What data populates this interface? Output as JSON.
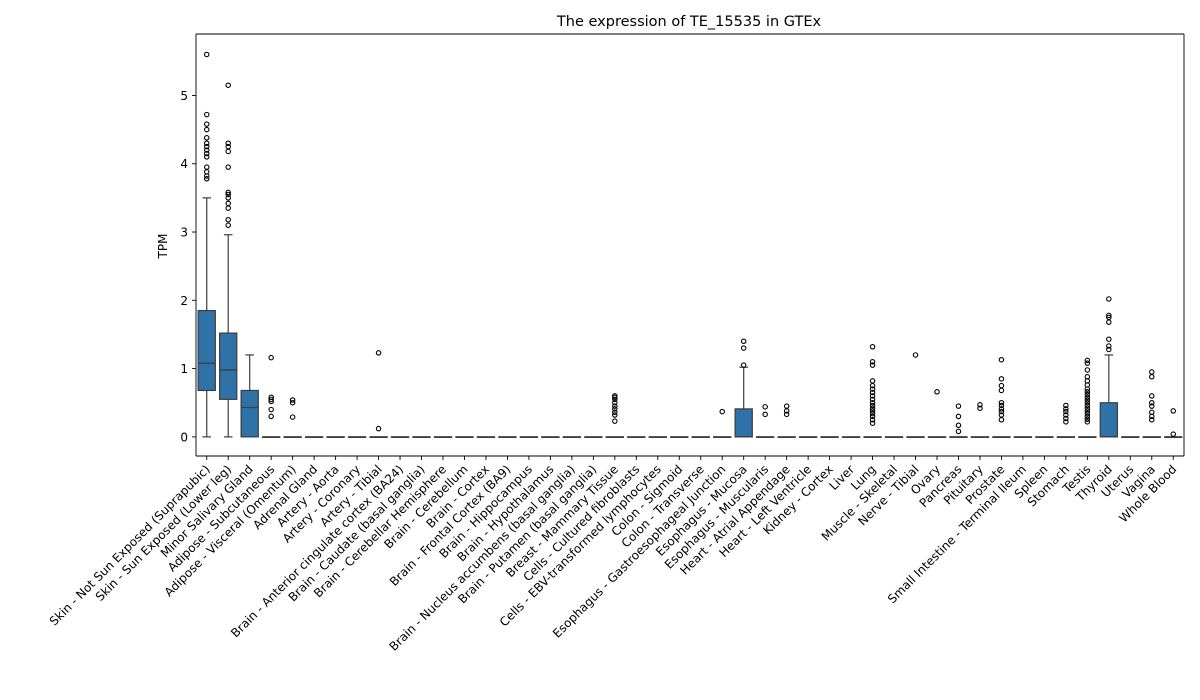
{
  "chart_data": {
    "type": "box",
    "title": "The expression of TE_15535 in GTEx",
    "xlabel": "",
    "ylabel": "TPM",
    "ylim": [
      -0.28,
      5.9
    ],
    "yticks": [
      0,
      1,
      2,
      3,
      4,
      5
    ],
    "grid": false,
    "box_color": "#2f72a8",
    "categories": [
      "Skin - Not Sun Exposed (Suprapubic)",
      "Skin - Sun Exposed (Lower leg)",
      "Minor Salivary Gland",
      "Adipose - Subcutaneous",
      "Adipose - Visceral (Omentum)",
      "Adrenal Gland",
      "Artery - Aorta",
      "Artery - Coronary",
      "Artery - Tibial",
      "Brain - Anterior cingulate cortex (BA24)",
      "Brain - Caudate (basal ganglia)",
      "Brain - Cerebellar Hemisphere",
      "Brain - Cerebellum",
      "Brain - Cortex",
      "Brain - Frontal Cortex (BA9)",
      "Brain - Hippocampus",
      "Brain - Hypothalamus",
      "Brain - Nucleus accumbens (basal ganglia)",
      "Brain - Putamen (basal ganglia)",
      "Breast - Mammary Tissue",
      "Cells - Cultured fibroblasts",
      "Cells - EBV-transformed lymphocytes",
      "Colon - Sigmoid",
      "Colon - Transverse",
      "Esophagus - Gastroesophageal Junction",
      "Esophagus - Mucosa",
      "Esophagus - Muscularis",
      "Heart - Atrial Appendage",
      "Heart - Left Ventricle",
      "Kidney - Cortex",
      "Liver",
      "Lung",
      "Muscle - Skeletal",
      "Nerve - Tibial",
      "Ovary",
      "Pancreas",
      "Pituitary",
      "Prostate",
      "Small Intestine - Terminal Ileum",
      "Spleen",
      "Stomach",
      "Testis",
      "Thyroid",
      "Uterus",
      "Vagina",
      "Whole Blood"
    ],
    "boxes": [
      {
        "q1": 0.68,
        "median": 1.08,
        "q3": 1.85,
        "whisker_low": 0.0,
        "whisker_high": 3.5,
        "outliers": [
          3.78,
          3.82,
          3.88,
          3.95,
          4.1,
          4.15,
          4.2,
          4.25,
          4.3,
          4.38,
          4.5,
          4.58,
          4.72,
          5.6
        ]
      },
      {
        "q1": 0.55,
        "median": 0.98,
        "q3": 1.52,
        "whisker_low": 0.0,
        "whisker_high": 2.96,
        "outliers": [
          3.1,
          3.18,
          3.35,
          3.42,
          3.5,
          3.55,
          3.58,
          3.95,
          4.18,
          4.25,
          4.3,
          5.15
        ]
      },
      {
        "q1": 0.0,
        "median": 0.43,
        "q3": 0.68,
        "whisker_low": 0.0,
        "whisker_high": 1.2,
        "outliers": []
      },
      {
        "q1": 0.0,
        "median": 0.0,
        "q3": 0.0,
        "whisker_low": 0.0,
        "whisker_high": 0.0,
        "outliers": [
          0.3,
          0.4,
          0.52,
          0.55,
          0.58,
          1.16
        ]
      },
      {
        "q1": 0.0,
        "median": 0.0,
        "q3": 0.0,
        "whisker_low": 0.0,
        "whisker_high": 0.0,
        "outliers": [
          0.29,
          0.5,
          0.54
        ]
      },
      {
        "q1": 0.0,
        "median": 0.0,
        "q3": 0.0,
        "whisker_low": 0.0,
        "whisker_high": 0.0,
        "outliers": []
      },
      {
        "q1": 0.0,
        "median": 0.0,
        "q3": 0.0,
        "whisker_low": 0.0,
        "whisker_high": 0.0,
        "outliers": []
      },
      {
        "q1": 0.0,
        "median": 0.0,
        "q3": 0.0,
        "whisker_low": 0.0,
        "whisker_high": 0.0,
        "outliers": []
      },
      {
        "q1": 0.0,
        "median": 0.0,
        "q3": 0.0,
        "whisker_low": 0.0,
        "whisker_high": 0.0,
        "outliers": [
          0.12,
          1.23
        ]
      },
      {
        "q1": 0.0,
        "median": 0.0,
        "q3": 0.0,
        "whisker_low": 0.0,
        "whisker_high": 0.0,
        "outliers": []
      },
      {
        "q1": 0.0,
        "median": 0.0,
        "q3": 0.0,
        "whisker_low": 0.0,
        "whisker_high": 0.0,
        "outliers": []
      },
      {
        "q1": 0.0,
        "median": 0.0,
        "q3": 0.0,
        "whisker_low": 0.0,
        "whisker_high": 0.0,
        "outliers": []
      },
      {
        "q1": 0.0,
        "median": 0.0,
        "q3": 0.0,
        "whisker_low": 0.0,
        "whisker_high": 0.0,
        "outliers": []
      },
      {
        "q1": 0.0,
        "median": 0.0,
        "q3": 0.0,
        "whisker_low": 0.0,
        "whisker_high": 0.0,
        "outliers": []
      },
      {
        "q1": 0.0,
        "median": 0.0,
        "q3": 0.0,
        "whisker_low": 0.0,
        "whisker_high": 0.0,
        "outliers": []
      },
      {
        "q1": 0.0,
        "median": 0.0,
        "q3": 0.0,
        "whisker_low": 0.0,
        "whisker_high": 0.0,
        "outliers": []
      },
      {
        "q1": 0.0,
        "median": 0.0,
        "q3": 0.0,
        "whisker_low": 0.0,
        "whisker_high": 0.0,
        "outliers": []
      },
      {
        "q1": 0.0,
        "median": 0.0,
        "q3": 0.0,
        "whisker_low": 0.0,
        "whisker_high": 0.0,
        "outliers": []
      },
      {
        "q1": 0.0,
        "median": 0.0,
        "q3": 0.0,
        "whisker_low": 0.0,
        "whisker_high": 0.0,
        "outliers": []
      },
      {
        "q1": 0.0,
        "median": 0.0,
        "q3": 0.0,
        "whisker_low": 0.0,
        "whisker_high": 0.0,
        "outliers": [
          0.23,
          0.32,
          0.36,
          0.41,
          0.45,
          0.5,
          0.55,
          0.58,
          0.6
        ]
      },
      {
        "q1": 0.0,
        "median": 0.0,
        "q3": 0.0,
        "whisker_low": 0.0,
        "whisker_high": 0.0,
        "outliers": []
      },
      {
        "q1": 0.0,
        "median": 0.0,
        "q3": 0.0,
        "whisker_low": 0.0,
        "whisker_high": 0.0,
        "outliers": []
      },
      {
        "q1": 0.0,
        "median": 0.0,
        "q3": 0.0,
        "whisker_low": 0.0,
        "whisker_high": 0.0,
        "outliers": []
      },
      {
        "q1": 0.0,
        "median": 0.0,
        "q3": 0.0,
        "whisker_low": 0.0,
        "whisker_high": 0.0,
        "outliers": []
      },
      {
        "q1": 0.0,
        "median": 0.0,
        "q3": 0.0,
        "whisker_low": 0.0,
        "whisker_high": 0.0,
        "outliers": [
          0.37
        ]
      },
      {
        "q1": 0.0,
        "median": 0.0,
        "q3": 0.41,
        "whisker_low": 0.0,
        "whisker_high": 1.02,
        "outliers": [
          1.05,
          1.3,
          1.4
        ]
      },
      {
        "q1": 0.0,
        "median": 0.0,
        "q3": 0.0,
        "whisker_low": 0.0,
        "whisker_high": 0.0,
        "outliers": [
          0.33,
          0.44
        ]
      },
      {
        "q1": 0.0,
        "median": 0.0,
        "q3": 0.0,
        "whisker_low": 0.0,
        "whisker_high": 0.0,
        "outliers": [
          0.33,
          0.38,
          0.45
        ]
      },
      {
        "q1": 0.0,
        "median": 0.0,
        "q3": 0.0,
        "whisker_low": 0.0,
        "whisker_high": 0.0,
        "outliers": []
      },
      {
        "q1": 0.0,
        "median": 0.0,
        "q3": 0.0,
        "whisker_low": 0.0,
        "whisker_high": 0.0,
        "outliers": []
      },
      {
        "q1": 0.0,
        "median": 0.0,
        "q3": 0.0,
        "whisker_low": 0.0,
        "whisker_high": 0.0,
        "outliers": []
      },
      {
        "q1": 0.0,
        "median": 0.0,
        "q3": 0.0,
        "whisker_low": 0.0,
        "whisker_high": 0.0,
        "outliers": [
          0.2,
          0.25,
          0.3,
          0.34,
          0.38,
          0.42,
          0.46,
          0.5,
          0.55,
          0.6,
          0.65,
          0.7,
          0.75,
          0.82,
          1.05,
          1.1,
          1.32
        ]
      },
      {
        "q1": 0.0,
        "median": 0.0,
        "q3": 0.0,
        "whisker_low": 0.0,
        "whisker_high": 0.0,
        "outliers": []
      },
      {
        "q1": 0.0,
        "median": 0.0,
        "q3": 0.0,
        "whisker_low": 0.0,
        "whisker_high": 0.0,
        "outliers": [
          1.2
        ]
      },
      {
        "q1": 0.0,
        "median": 0.0,
        "q3": 0.0,
        "whisker_low": 0.0,
        "whisker_high": 0.0,
        "outliers": [
          0.66
        ]
      },
      {
        "q1": 0.0,
        "median": 0.0,
        "q3": 0.0,
        "whisker_low": 0.0,
        "whisker_high": 0.0,
        "outliers": [
          0.08,
          0.17,
          0.3,
          0.45
        ]
      },
      {
        "q1": 0.0,
        "median": 0.0,
        "q3": 0.0,
        "whisker_low": 0.0,
        "whisker_high": 0.0,
        "outliers": [
          0.42,
          0.47
        ]
      },
      {
        "q1": 0.0,
        "median": 0.0,
        "q3": 0.0,
        "whisker_low": 0.0,
        "whisker_high": 0.0,
        "outliers": [
          0.25,
          0.32,
          0.37,
          0.41,
          0.46,
          0.5,
          0.68,
          0.75,
          0.85,
          1.13
        ]
      },
      {
        "q1": 0.0,
        "median": 0.0,
        "q3": 0.0,
        "whisker_low": 0.0,
        "whisker_high": 0.0,
        "outliers": []
      },
      {
        "q1": 0.0,
        "median": 0.0,
        "q3": 0.0,
        "whisker_low": 0.0,
        "whisker_high": 0.0,
        "outliers": []
      },
      {
        "q1": 0.0,
        "median": 0.0,
        "q3": 0.0,
        "whisker_low": 0.0,
        "whisker_high": 0.0,
        "outliers": [
          0.22,
          0.27,
          0.32,
          0.37,
          0.41,
          0.46
        ]
      },
      {
        "q1": 0.0,
        "median": 0.0,
        "q3": 0.0,
        "whisker_low": 0.0,
        "whisker_high": 0.0,
        "outliers": [
          0.22,
          0.26,
          0.3,
          0.34,
          0.38,
          0.42,
          0.46,
          0.5,
          0.54,
          0.58,
          0.62,
          0.66,
          0.7,
          0.76,
          0.82,
          0.88,
          0.98,
          1.08,
          1.12
        ]
      },
      {
        "q1": 0.0,
        "median": 0.0,
        "q3": 0.5,
        "whisker_low": 0.0,
        "whisker_high": 1.2,
        "outliers": [
          1.28,
          1.33,
          1.43,
          1.68,
          1.75,
          1.78,
          2.02
        ]
      },
      {
        "q1": 0.0,
        "median": 0.0,
        "q3": 0.0,
        "whisker_low": 0.0,
        "whisker_high": 0.0,
        "outliers": []
      },
      {
        "q1": 0.0,
        "median": 0.0,
        "q3": 0.0,
        "whisker_low": 0.0,
        "whisker_high": 0.0,
        "outliers": [
          0.25,
          0.3,
          0.36,
          0.45,
          0.5,
          0.6,
          0.88,
          0.95
        ]
      },
      {
        "q1": 0.0,
        "median": 0.0,
        "q3": 0.0,
        "whisker_low": 0.0,
        "whisker_high": 0.0,
        "outliers": [
          0.04,
          0.38
        ]
      }
    ]
  }
}
